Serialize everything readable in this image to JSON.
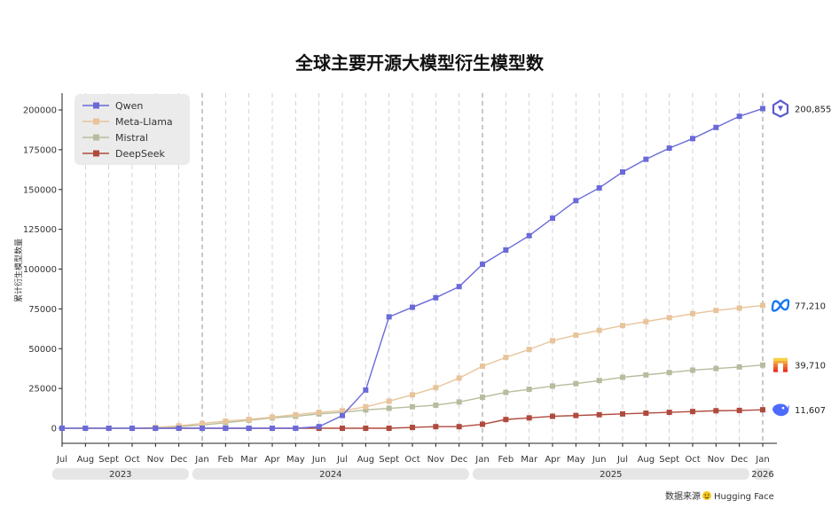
{
  "chart_data": {
    "type": "line",
    "title": "全球主要开源大模型衍生模型数",
    "ylabel": "累计衍生模型数量",
    "xlabel": "",
    "ylim": [
      -10000,
      210000
    ],
    "yticks": [
      0,
      25000,
      50000,
      75000,
      100000,
      125000,
      150000,
      175000,
      200000
    ],
    "grid": "vertical-dashed",
    "legend_position": "top-left",
    "months": [
      "Jul",
      "Aug",
      "Sept",
      "Oct",
      "Nov",
      "Dec",
      "Jan",
      "Feb",
      "Mar",
      "Apr",
      "May",
      "Jun",
      "Jul",
      "Aug",
      "Sept",
      "Oct",
      "Nov",
      "Dec",
      "Jan",
      "Feb",
      "Mar",
      "Apr",
      "May",
      "Jun",
      "Jul",
      "Aug",
      "Sept",
      "Oct",
      "Nov",
      "Dec",
      "Jan"
    ],
    "years": [
      {
        "label": "2023",
        "start": 0,
        "end": 5
      },
      {
        "label": "2024",
        "start": 6,
        "end": 17
      },
      {
        "label": "2025",
        "start": 18,
        "end": 29
      },
      {
        "label": "2026",
        "start": 30,
        "end": 30
      }
    ],
    "series": [
      {
        "name": "Qwen",
        "color": "#6a6ad8",
        "values": [
          0,
          0,
          0,
          0,
          0,
          0,
          0,
          0,
          0,
          0,
          0,
          1000,
          8000,
          24000,
          70000,
          76000,
          82000,
          89000,
          103000,
          112000,
          121000,
          132000,
          143000,
          151000,
          161000,
          169000,
          176000,
          182000,
          189000,
          196000,
          200855
        ],
        "end_label": "200,855",
        "icon": "qwen-icon"
      },
      {
        "name": "Meta-Llama",
        "color": "#e8c49a",
        "values": [
          0,
          0,
          0,
          0,
          500,
          1500,
          3000,
          4500,
          5500,
          7000,
          8500,
          10000,
          11000,
          13500,
          17000,
          21000,
          25500,
          31500,
          39000,
          44500,
          49500,
          55000,
          58500,
          61500,
          64500,
          67000,
          69500,
          72000,
          74000,
          75500,
          77210
        ],
        "end_label": "77,210",
        "icon": "meta-icon"
      },
      {
        "name": "Mistral",
        "color": "#b5bd9e",
        "values": [
          0,
          0,
          0,
          0,
          0,
          1000,
          2000,
          3500,
          5000,
          6500,
          7500,
          9000,
          10000,
          11500,
          12500,
          13500,
          14500,
          16500,
          19500,
          22500,
          24500,
          26500,
          28000,
          30000,
          32000,
          33500,
          35000,
          36500,
          37500,
          38500,
          39710
        ],
        "end_label": "39,710",
        "icon": "mistral-icon"
      },
      {
        "name": "DeepSeek",
        "color": "#b04a3e",
        "values": [
          0,
          0,
          0,
          0,
          0,
          0,
          0,
          0,
          0,
          0,
          0,
          0,
          0,
          0,
          0,
          500,
          1000,
          1000,
          2500,
          5500,
          6500,
          7500,
          8000,
          8500,
          9000,
          9500,
          10000,
          10500,
          11000,
          11200,
          11607
        ],
        "end_label": "11,607",
        "icon": "deepseek-icon"
      }
    ]
  },
  "source": {
    "prefix": "数据来源",
    "name": "Hugging Face"
  }
}
